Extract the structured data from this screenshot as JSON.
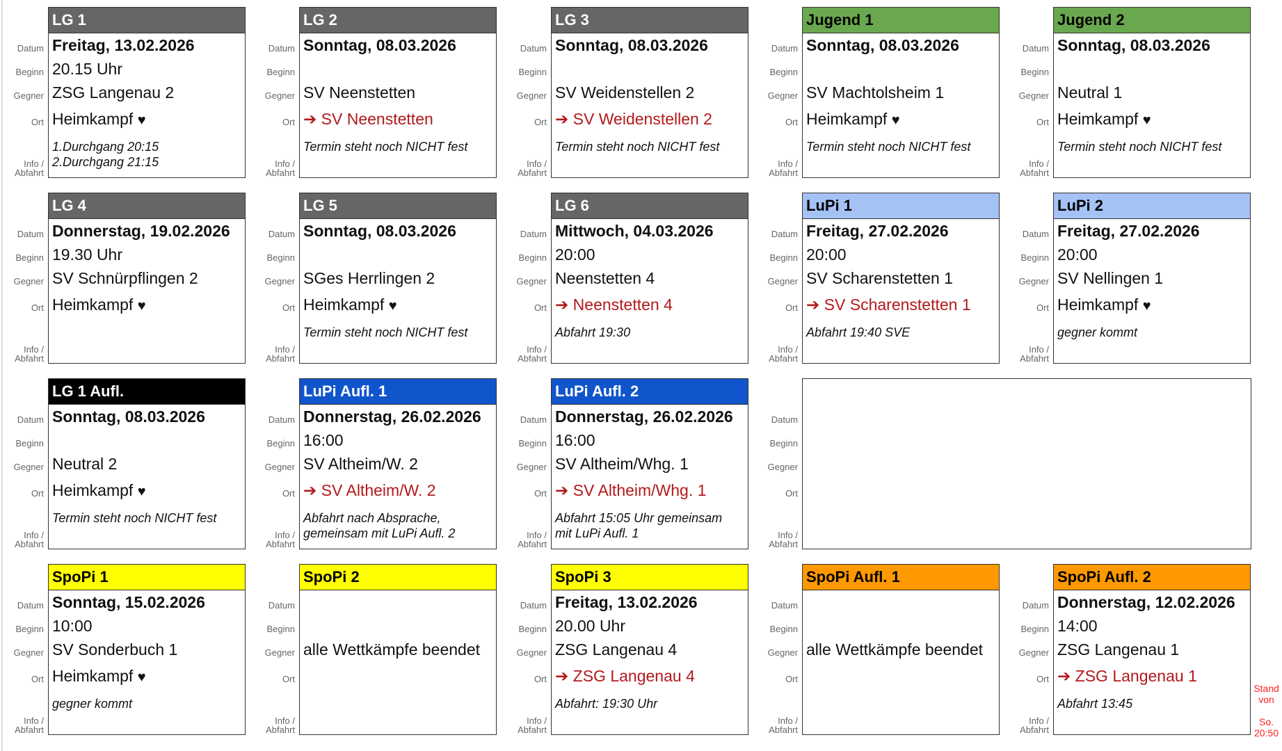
{
  "row_labels": {
    "datum": "Datum",
    "beginn": "Beginn",
    "gegner": "Gegner",
    "ort": "Ort",
    "info": "Info /\nAbfahrt"
  },
  "home_suffix": "♥",
  "away_prefix": "➔",
  "stand": "Stand\nvon\n\nSo.\n20:50",
  "cards": [
    {
      "title": "LG 1",
      "color": "#666666",
      "text_color": "#ffffff",
      "date": "Freitag, 13.02.2026",
      "begin": "20.15 Uhr",
      "opponent": "ZSG Langenau 2",
      "location": "Heimkampf",
      "home": true,
      "info": "1.Durchgang 20:15\n2.Durchgang 21:15"
    },
    {
      "title": "LG 2",
      "color": "#666666",
      "text_color": "#ffffff",
      "date": "Sonntag, 08.03.2026",
      "begin": "",
      "opponent": "SV Neenstetten",
      "location": "SV Neenstetten",
      "home": false,
      "info": "Termin steht noch NICHT fest"
    },
    {
      "title": "LG 3",
      "color": "#666666",
      "text_color": "#ffffff",
      "date": "Sonntag, 08.03.2026",
      "begin": "",
      "opponent": "SV Weidenstellen 2",
      "location": "SV Weidenstellen 2",
      "home": false,
      "info": "Termin steht noch NICHT fest"
    },
    {
      "title": "Jugend 1",
      "color": "#6aa84f",
      "text_color": "#000000",
      "date": "Sonntag, 08.03.2026",
      "begin": "",
      "opponent": "SV Machtolsheim 1",
      "location": "Heimkampf",
      "home": true,
      "info": "Termin steht noch NICHT fest"
    },
    {
      "title": "Jugend 2",
      "color": "#6aa84f",
      "text_color": "#000000",
      "date": "Sonntag, 08.03.2026",
      "begin": "",
      "opponent": "Neutral 1",
      "location": "Heimkampf",
      "home": true,
      "info": "Termin steht noch NICHT fest"
    },
    {
      "title": "LG 4",
      "color": "#666666",
      "text_color": "#ffffff",
      "date": "Donnerstag, 19.02.2026",
      "begin": "19.30 Uhr",
      "opponent": "SV Schnürpflingen 2",
      "location": "Heimkampf",
      "home": true,
      "info": ""
    },
    {
      "title": "LG 5",
      "color": "#666666",
      "text_color": "#ffffff",
      "date": "Sonntag, 08.03.2026",
      "begin": "",
      "opponent": "SGes Herrlingen 2",
      "location": "Heimkampf",
      "home": true,
      "info": "Termin steht noch NICHT fest"
    },
    {
      "title": "LG 6",
      "color": "#666666",
      "text_color": "#ffffff",
      "date": "Mittwoch, 04.03.2026",
      "begin": "20:00",
      "opponent": "Neenstetten 4",
      "location": "Neenstetten 4",
      "home": false,
      "info": "Abfahrt 19:30"
    },
    {
      "title": "LuPi 1",
      "color": "#a4c2f4",
      "text_color": "#000000",
      "date": "Freitag, 27.02.2026",
      "begin": "20:00",
      "opponent": "SV Scharenstetten 1",
      "location": "SV Scharenstetten 1",
      "home": false,
      "info": "Abfahrt 19:40 SVE"
    },
    {
      "title": "LuPi 2",
      "color": "#a4c2f4",
      "text_color": "#000000",
      "date": "Freitag, 27.02.2026",
      "begin": "20:00",
      "opponent": "SV Nellingen 1",
      "location": "Heimkampf",
      "home": true,
      "info": "gegner kommt"
    },
    {
      "title": "LG 1 Aufl.",
      "color": "#000000",
      "text_color": "#ffffff",
      "date": "Sonntag, 08.03.2026",
      "begin": "",
      "opponent": "Neutral 2",
      "location": "Heimkampf",
      "home": true,
      "info": "Termin steht noch NICHT fest"
    },
    {
      "title": "LuPi Aufl. 1",
      "color": "#1155cc",
      "text_color": "#ffffff",
      "date": "Donnerstag, 26.02.2026",
      "begin": "16:00",
      "opponent": "SV Altheim/W. 2",
      "location": "SV Altheim/W. 2",
      "home": false,
      "info": "Abfahrt nach Absprache,\ngemeinsam mit LuPi Aufl. 2"
    },
    {
      "title": "LuPi Aufl. 2",
      "color": "#1155cc",
      "text_color": "#ffffff",
      "date": "Donnerstag, 26.02.2026",
      "begin": "16:00",
      "opponent": "SV Altheim/Whg. 1",
      "location": "SV Altheim/Whg. 1",
      "home": false,
      "info": "Abfahrt 15:05 Uhr gemeinsam\nmit LuPi Aufl. 1"
    },
    null,
    null,
    {
      "title": "SpoPi 1",
      "color": "#ffff00",
      "text_color": "#000000",
      "date": "Sonntag, 15.02.2026",
      "begin": "10:00",
      "opponent": "SV Sonderbuch 1",
      "location": "Heimkampf",
      "home": true,
      "info": "gegner kommt"
    },
    {
      "title": "SpoPi 2",
      "color": "#ffff00",
      "text_color": "#000000",
      "date": "",
      "begin": "",
      "opponent": "alle Wettkämpfe beendet",
      "location": "",
      "home": null,
      "info": ""
    },
    {
      "title": "SpoPi 3",
      "color": "#ffff00",
      "text_color": "#000000",
      "date": "Freitag, 13.02.2026",
      "begin": "20.00 Uhr",
      "opponent": "ZSG Langenau 4",
      "location": "ZSG Langenau 4",
      "home": false,
      "info": "Abfahrt: 19:30 Uhr"
    },
    {
      "title": "SpoPi Aufl. 1",
      "color": "#ff9900",
      "text_color": "#000000",
      "date": "",
      "begin": "",
      "opponent": "alle Wettkämpfe beendet",
      "location": "",
      "home": null,
      "info": ""
    },
    {
      "title": "SpoPi Aufl. 2",
      "color": "#ff9900",
      "text_color": "#000000",
      "date": "Donnerstag, 12.02.2026",
      "begin": "14:00",
      "opponent": "ZSG Langenau 1",
      "location": "ZSG Langenau 1",
      "home": false,
      "info": "Abfahrt 13:45"
    }
  ]
}
